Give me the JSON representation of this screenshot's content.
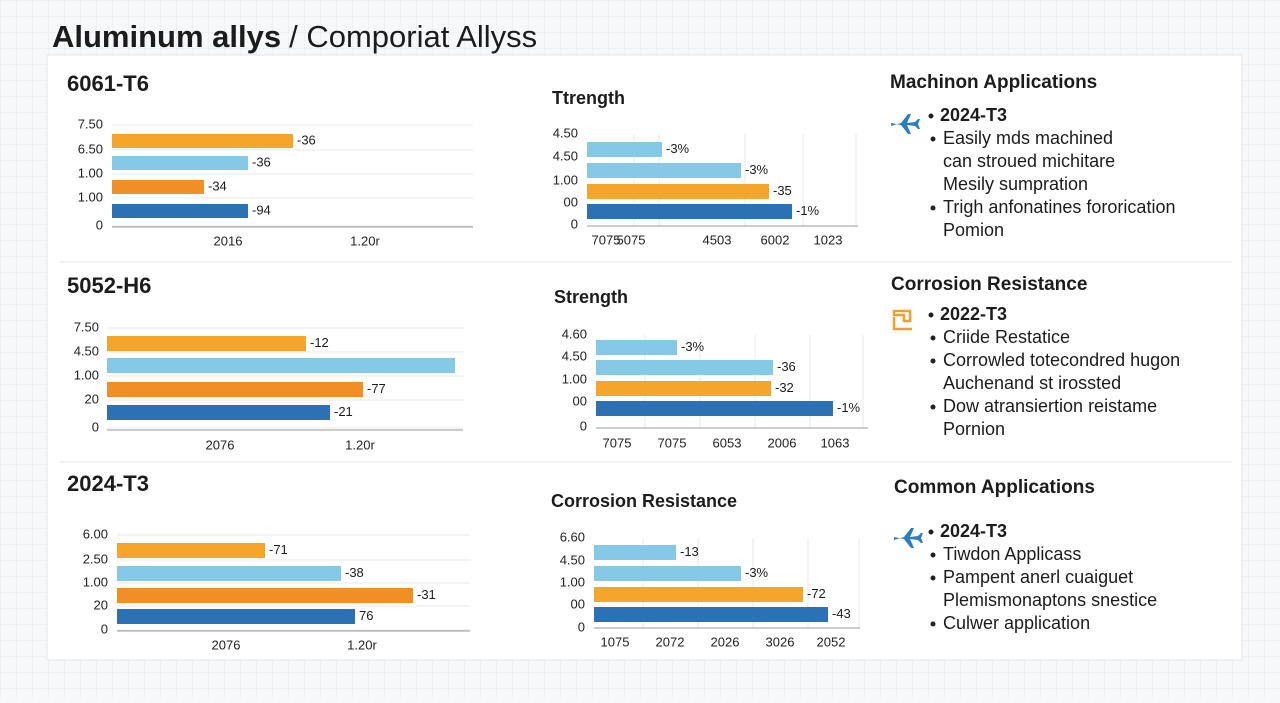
{
  "title": {
    "bold": "Aluminum allys",
    "rest": "/ Comporiat Allyss"
  },
  "rows": [
    {
      "alloy": "6061-T6",
      "bar_chart": {
        "y_labels": [
          "7.50",
          "6.50",
          "1.00",
          "1.00",
          "0"
        ],
        "x_labels": [
          "2016",
          "1.20r"
        ],
        "bar_labels": [
          "-36",
          "-36",
          "-34",
          "-94"
        ]
      },
      "strength_chart": {
        "title": "Ttrength",
        "y_labels": [
          "4.50",
          "4.50",
          "1.00",
          "00",
          "0"
        ],
        "x_labels": [
          "7075",
          "5075",
          "4503",
          "6002",
          "1023"
        ],
        "bar_labels": [
          "-3%",
          "-3%",
          "-35",
          "-1%"
        ]
      },
      "applications": {
        "title": "Machinon Applications",
        "alloy": "2024-T3",
        "items": [
          [
            "Easily mds machined",
            "can stroued michitare",
            "Mesily sumpration"
          ],
          [
            "Trigh anfonatines fororication",
            "Pomion"
          ]
        ]
      }
    },
    {
      "alloy": "5052-H6",
      "bar_chart": {
        "y_labels": [
          "7.50",
          "4.50",
          "1.00",
          "20",
          "0"
        ],
        "x_labels": [
          "2076",
          "1.20r"
        ],
        "bar_labels": [
          "-12",
          null,
          "-77",
          "-21"
        ]
      },
      "strength_chart": {
        "title": "Strength",
        "y_labels": [
          "4.60",
          "4.50",
          "1.00",
          "00",
          "0"
        ],
        "x_labels": [
          "7075",
          "7075",
          "6053",
          "2006",
          "1063"
        ],
        "bar_labels": [
          "-3%",
          "-36",
          "-32",
          "-1%"
        ]
      },
      "applications": {
        "title": "Corrosion Resistance",
        "alloy": "2022-T3",
        "items": [
          [
            "Criide Restatice"
          ],
          [
            "Corrowled totecondred hugon",
            "Auchenand st irossted"
          ],
          [
            "Dow atransiertion reistame",
            "Pornion"
          ]
        ]
      }
    },
    {
      "alloy": "2024-T3",
      "bar_chart": {
        "y_labels": [
          "6.00",
          "2.50",
          "1.00",
          "20",
          "0"
        ],
        "x_labels": [
          "2076",
          "1.20r"
        ],
        "bar_labels": [
          "-71",
          "-38",
          "-31",
          "76"
        ]
      },
      "strength_chart": {
        "title": "Corrosion Resistance",
        "y_labels": [
          "6.60",
          "4.50",
          "1.00",
          "00",
          "0"
        ],
        "x_labels": [
          "1075",
          "2072",
          "2026",
          "3026",
          "2052"
        ],
        "bar_labels": [
          "-13",
          "-3%",
          "-72",
          "-43"
        ]
      },
      "applications": {
        "title": "Common Applications",
        "alloy": "2024-T3",
        "items": [
          [
            "Tiwdon Applicass"
          ],
          [
            "Pampent anerl cuaiguet",
            "Plemismonaptons snestice"
          ],
          [
            "Culwer application"
          ]
        ]
      }
    }
  ]
}
